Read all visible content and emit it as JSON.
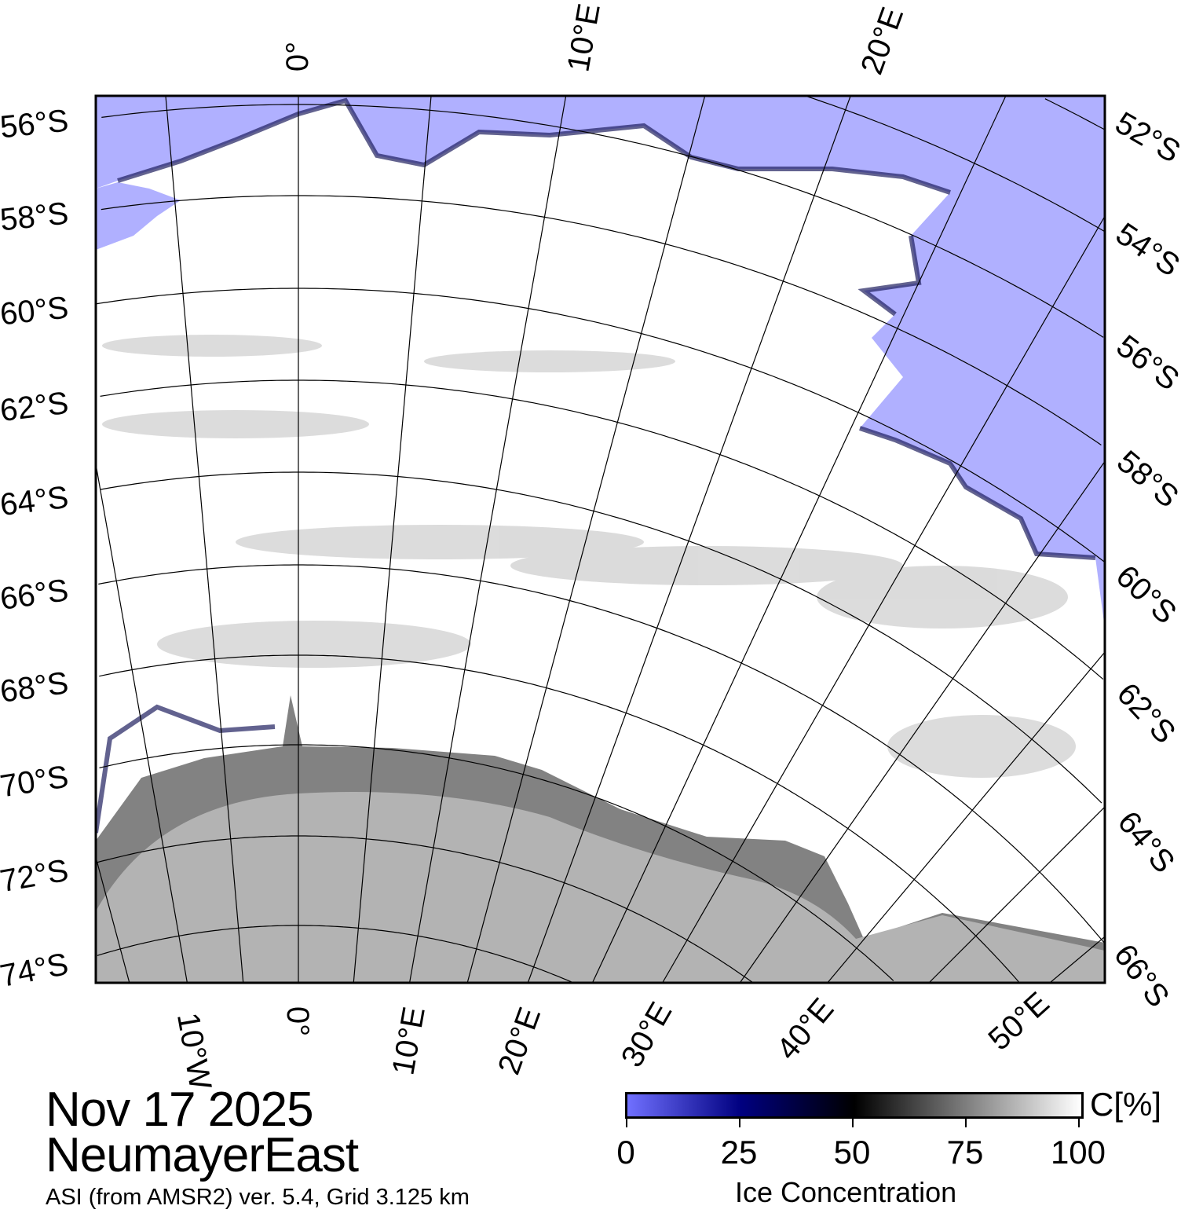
{
  "map": {
    "title_date": "Nov 17 2025",
    "region": "NeumayerEast",
    "subtitle": "ASI (from AMSR2) ver. 5.4,  Grid 3.125 km",
    "left_lat_labels": [
      "56°S",
      "58°S",
      "60°S",
      "62°S",
      "64°S",
      "66°S",
      "68°S",
      "70°S",
      "72°S",
      "74°S"
    ],
    "right_lat_labels": [
      "52°S",
      "54°S",
      "56°S",
      "58°S",
      "60°S",
      "62°S",
      "64°S",
      "66°S"
    ],
    "top_lon_labels": [
      "0°",
      "10°E",
      "20°E"
    ],
    "bottom_lon_labels": [
      "10°W",
      "0°",
      "10°E",
      "20°E",
      "30°E",
      "40°E",
      "50°E"
    ],
    "colors": {
      "open_water": "#b0b0ff",
      "ice": "#ffffff",
      "land": "#b3b3b3",
      "ice_shelf": "#828282"
    }
  },
  "colorbar": {
    "label": "Ice Concentration",
    "unit": "C[%]",
    "ticks": [
      "0",
      "25",
      "50",
      "75",
      "100"
    ],
    "range": [
      0,
      100
    ]
  }
}
